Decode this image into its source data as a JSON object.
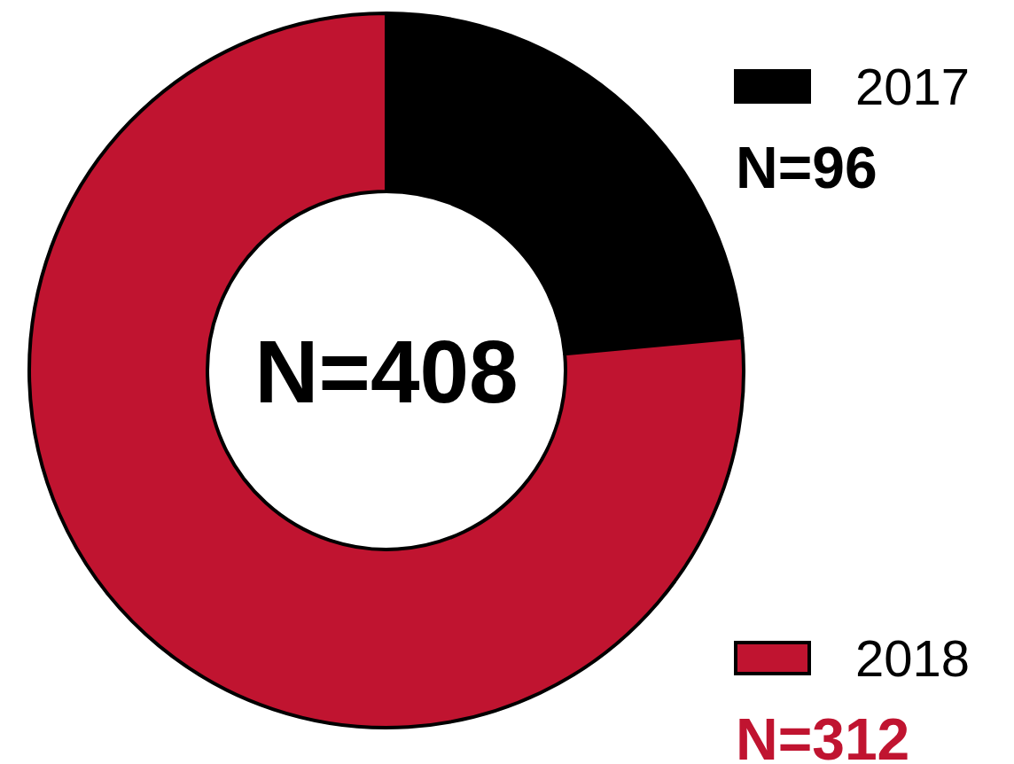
{
  "chart_data": {
    "type": "donut",
    "categories": [
      "2017",
      "2018"
    ],
    "values": [
      96,
      312
    ],
    "colors": [
      "#000000",
      "#c01430"
    ],
    "value_labels": [
      "N=96",
      "N=312"
    ],
    "annotations": [
      "N=408"
    ],
    "legend": "right"
  }
}
